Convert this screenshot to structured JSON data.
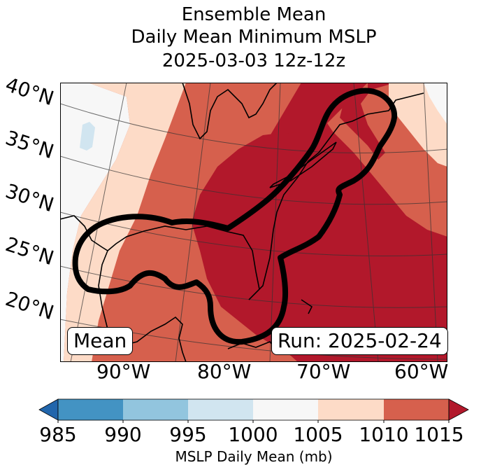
{
  "title": {
    "line1": "Ensemble Mean",
    "line2": "Daily Mean Minimum MSLP",
    "line3": "2025-03-03 12z-12z"
  },
  "map": {
    "lat_labels": [
      "40°N",
      "35°N",
      "30°N",
      "25°N",
      "20°N"
    ],
    "lon_labels": [
      "90°W",
      "80°W",
      "70°W",
      "60°W"
    ],
    "left_tag": "Mean",
    "right_tag": "Run: 2025-02-24"
  },
  "colorbar": {
    "ticks": [
      "985",
      "990",
      "995",
      "1000",
      "1005",
      "1010",
      "1015"
    ],
    "label": "MSLP Daily Mean (mb)",
    "colors": {
      "under": "#2166ac",
      "985-990": "#4393c3",
      "990-995": "#92c5de",
      "995-1000": "#d1e5f0",
      "1000-1005": "#f7f7f7",
      "1005-1010": "#fddbc7",
      "1010-1015": "#d6604d",
      "over": "#b2182b"
    }
  }
}
